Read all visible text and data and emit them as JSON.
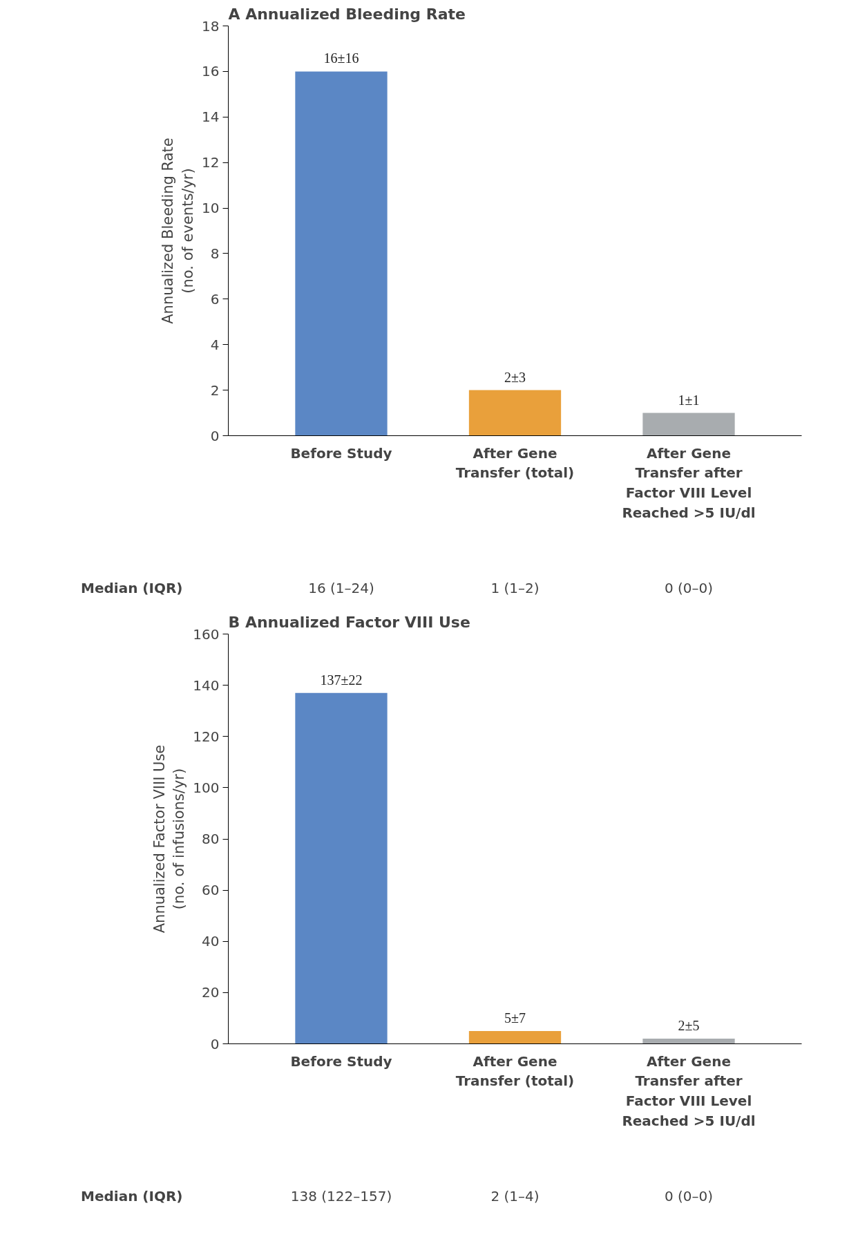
{
  "chart_data": [
    {
      "type": "bar",
      "title": "A  Annualized Bleeding Rate",
      "ylabel": "Annualized Bleeding Rate\n(no. of events/yr)",
      "categories": [
        "Before Study",
        "After Gene Transfer (total)",
        "After Gene Transfer after Factor VIII Level Reached >5 IU/dl"
      ],
      "values": [
        16,
        2,
        1
      ],
      "colors": [
        "#5b87c5",
        "#e9a03b",
        "#a8acaf"
      ],
      "value_labels": [
        "16±16",
        "2±3",
        "1±1"
      ],
      "ylim": [
        0,
        18
      ],
      "yticks": [
        0,
        2,
        4,
        6,
        8,
        10,
        12,
        14,
        16,
        18
      ],
      "grid": false,
      "annotations": [
        "Median (IQR)",
        "16 (1–24)",
        "1 (1–2)",
        "0 (0–0)"
      ]
    },
    {
      "type": "bar",
      "title": "B  Annualized Factor VIII Use",
      "ylabel": "Annualized Factor VIII Use\n(no. of infusions/yr)",
      "categories": [
        "Before Study",
        "After Gene Transfer (total)",
        "After Gene Transfer after Factor VIII Level Reached >5 IU/dl"
      ],
      "values": [
        137,
        5,
        2
      ],
      "colors": [
        "#5b87c5",
        "#e9a03b",
        "#a8acaf"
      ],
      "value_labels": [
        "137±22",
        "5±7",
        "2±5"
      ],
      "ylim": [
        0,
        160
      ],
      "yticks": [
        0,
        20,
        40,
        60,
        80,
        100,
        120,
        140,
        160
      ],
      "grid": false,
      "annotations": [
        "Median (IQR)",
        "138 (122–157)",
        "2 (1–4)",
        "0 (0–0)"
      ]
    }
  ]
}
